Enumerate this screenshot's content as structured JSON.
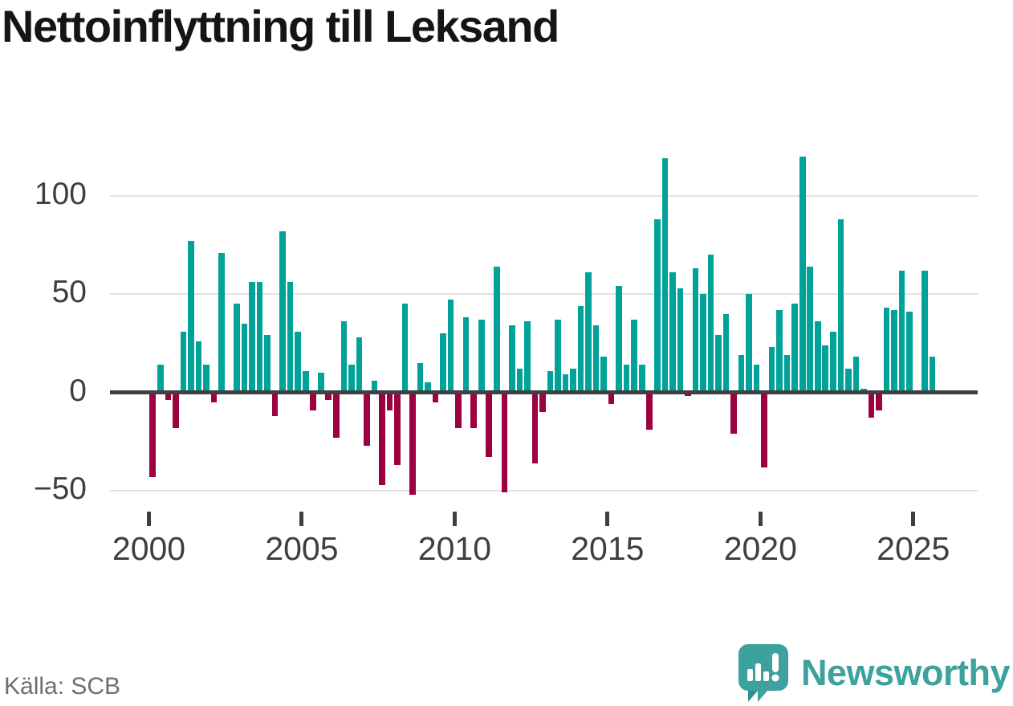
{
  "title": "Nettoinflyttning till Leksand",
  "source": "Källa: SCB",
  "branding": {
    "name": "Newsworthy",
    "icon": "newsworthy-speech-bubble-chart-icon"
  },
  "colors": {
    "positive": "#00a29a",
    "negative": "#9c0140",
    "grid": "#e2e2e2",
    "zero_line": "#404040",
    "axis_text": "#3f3f3f",
    "title_text": "#151515",
    "source_text": "#6d6d76",
    "brand": "#3da19e"
  },
  "chart_data": {
    "type": "bar",
    "title": "Nettoinflyttning till Leksand",
    "xlabel": "",
    "ylabel": "",
    "x_unit": "quarter",
    "grid": "horizontal",
    "legend": "none",
    "ylim": [
      -60,
      128
    ],
    "y_ticks": [
      100,
      50,
      0,
      -50
    ],
    "x_tick_labels": [
      "2000",
      "2005",
      "2010",
      "2015",
      "2020",
      "2025"
    ],
    "categories": [
      "2000Q1",
      "2000Q2",
      "2000Q3",
      "2000Q4",
      "2001Q1",
      "2001Q2",
      "2001Q3",
      "2001Q4",
      "2002Q1",
      "2002Q2",
      "2002Q3",
      "2002Q4",
      "2003Q1",
      "2003Q2",
      "2003Q3",
      "2003Q4",
      "2004Q1",
      "2004Q2",
      "2004Q3",
      "2004Q4",
      "2005Q1",
      "2005Q2",
      "2005Q3",
      "2005Q4",
      "2006Q1",
      "2006Q2",
      "2006Q3",
      "2006Q4",
      "2007Q1",
      "2007Q2",
      "2007Q3",
      "2007Q4",
      "2008Q1",
      "2008Q2",
      "2008Q3",
      "2008Q4",
      "2009Q1",
      "2009Q2",
      "2009Q3",
      "2009Q4",
      "2010Q1",
      "2010Q2",
      "2010Q3",
      "2010Q4",
      "2011Q1",
      "2011Q2",
      "2011Q3",
      "2011Q4",
      "2012Q1",
      "2012Q2",
      "2012Q3",
      "2012Q4",
      "2013Q1",
      "2013Q2",
      "2013Q3",
      "2013Q4",
      "2014Q1",
      "2014Q2",
      "2014Q3",
      "2014Q4",
      "2015Q1",
      "2015Q2",
      "2015Q3",
      "2015Q4",
      "2016Q1",
      "2016Q2",
      "2016Q3",
      "2016Q4",
      "2017Q1",
      "2017Q2",
      "2017Q3",
      "2017Q4",
      "2018Q1",
      "2018Q2",
      "2018Q3",
      "2018Q4",
      "2019Q1",
      "2019Q2",
      "2019Q3",
      "2019Q4",
      "2020Q1",
      "2020Q2",
      "2020Q3",
      "2020Q4",
      "2021Q1",
      "2021Q2",
      "2021Q3",
      "2021Q4",
      "2022Q1",
      "2022Q2",
      "2022Q3",
      "2022Q4",
      "2023Q1",
      "2023Q2",
      "2023Q3",
      "2023Q4",
      "2024Q1",
      "2024Q2",
      "2024Q3",
      "2024Q4",
      "2025Q1",
      "2025Q2",
      "2025Q3"
    ],
    "series": [
      {
        "name": "Nettoinflyttning",
        "values": [
          -43,
          14,
          -4,
          -18,
          31,
          77,
          26,
          14,
          -5,
          71,
          0,
          45,
          35,
          56,
          56,
          29,
          -12,
          82,
          56,
          31,
          11,
          -9,
          10,
          -4,
          -23,
          36,
          14,
          28,
          -27,
          6,
          -47,
          -9,
          -37,
          45,
          -52,
          15,
          5,
          -5,
          30,
          47,
          -18,
          38,
          -18,
          37,
          -33,
          64,
          -51,
          34,
          12,
          36,
          -36,
          -10,
          11,
          37,
          9,
          12,
          44,
          61,
          34,
          18,
          -6,
          54,
          14,
          37,
          14,
          -19,
          88,
          119,
          61,
          53,
          -2,
          63,
          50,
          70,
          29,
          40,
          -21,
          19,
          50,
          14,
          -38,
          23,
          42,
          19,
          45,
          120,
          64,
          36,
          24,
          31,
          88,
          12,
          18,
          2,
          -13,
          -9,
          43,
          42,
          62,
          41,
          0,
          62,
          18
        ]
      }
    ]
  }
}
